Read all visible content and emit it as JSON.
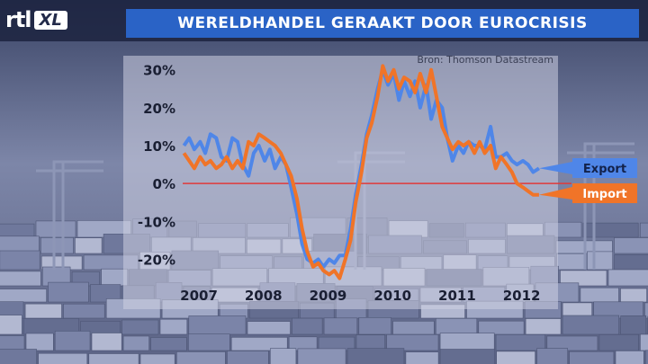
{
  "logo": {
    "text": "rtl",
    "badge": "XL"
  },
  "chart_data": {
    "type": "line",
    "title": "WERELDHANDEL GERAAKT DOOR EUROCRISIS",
    "subtitle": "Bron: Thomson Datastream",
    "x_ticks": [
      "2007",
      "2008",
      "2009",
      "2010",
      "2011",
      "2012"
    ],
    "y_ticks": [
      "30%",
      "20%",
      "10%",
      "0%",
      "-10%",
      "-20%"
    ],
    "ylim": [
      -27,
      33
    ],
    "xlim": [
      2006.9,
      2013.3
    ],
    "zero_line": true,
    "colors": {
      "Export": "#4f86e8",
      "Import": "#f07428",
      "zero": "#e03a3a"
    },
    "series": [
      {
        "name": "Export",
        "x": [
          2006.92,
          2007.0,
          2007.08,
          2007.17,
          2007.25,
          2007.33,
          2007.42,
          2007.5,
          2007.58,
          2007.67,
          2007.75,
          2007.83,
          2007.92,
          2008.0,
          2008.08,
          2008.17,
          2008.25,
          2008.33,
          2008.42,
          2008.5,
          2008.58,
          2008.67,
          2008.75,
          2008.83,
          2008.92,
          2009.0,
          2009.08,
          2009.17,
          2009.25,
          2009.33,
          2009.42,
          2009.5,
          2009.58,
          2009.67,
          2009.75,
          2009.83,
          2009.92,
          2010.0,
          2010.08,
          2010.17,
          2010.25,
          2010.33,
          2010.42,
          2010.5,
          2010.58,
          2010.67,
          2010.75,
          2010.83,
          2010.92,
          2011.0,
          2011.08,
          2011.17,
          2011.25,
          2011.33,
          2011.42,
          2011.5,
          2011.58,
          2011.67,
          2011.75,
          2011.83,
          2011.92,
          2012.0,
          2012.08,
          2012.17,
          2012.25,
          2012.33,
          2012.42
        ],
        "values": [
          10,
          12,
          9,
          11,
          8,
          13,
          12,
          7,
          6,
          12,
          11,
          5,
          2,
          8,
          10,
          6,
          9,
          4,
          7,
          5,
          -1,
          -8,
          -16,
          -20,
          -21,
          -20,
          -22,
          -20,
          -21,
          -19,
          -19,
          -12,
          -3,
          5,
          13,
          18,
          25,
          30,
          26,
          29,
          22,
          27,
          23,
          27,
          20,
          26,
          17,
          22,
          20,
          12,
          6,
          10,
          8,
          11,
          10,
          10,
          9,
          15,
          7,
          7,
          8,
          6,
          5,
          6,
          5,
          3,
          4
        ]
      },
      {
        "name": "Import",
        "x": [
          2006.92,
          2007.0,
          2007.08,
          2007.17,
          2007.25,
          2007.33,
          2007.42,
          2007.5,
          2007.58,
          2007.67,
          2007.75,
          2007.83,
          2007.92,
          2008.0,
          2008.08,
          2008.17,
          2008.25,
          2008.33,
          2008.42,
          2008.5,
          2008.58,
          2008.67,
          2008.75,
          2008.83,
          2008.92,
          2009.0,
          2009.08,
          2009.17,
          2009.25,
          2009.33,
          2009.42,
          2009.5,
          2009.58,
          2009.67,
          2009.75,
          2009.83,
          2009.92,
          2010.0,
          2010.08,
          2010.17,
          2010.25,
          2010.33,
          2010.42,
          2010.5,
          2010.58,
          2010.67,
          2010.75,
          2010.83,
          2010.92,
          2011.0,
          2011.08,
          2011.17,
          2011.25,
          2011.33,
          2011.42,
          2011.5,
          2011.58,
          2011.67,
          2011.75,
          2011.83,
          2011.92,
          2012.0,
          2012.08,
          2012.17,
          2012.25,
          2012.33,
          2012.42
        ],
        "values": [
          8,
          6,
          4,
          7,
          5,
          6,
          4,
          5,
          7,
          4,
          6,
          4,
          11,
          10,
          13,
          12,
          11,
          10,
          8,
          5,
          2,
          -4,
          -12,
          -18,
          -22,
          -21,
          -23,
          -24,
          -23,
          -25,
          -20,
          -15,
          -5,
          3,
          12,
          16,
          23,
          31,
          27,
          30,
          25,
          28,
          27,
          24,
          29,
          24,
          30,
          23,
          15,
          12,
          9,
          11,
          10,
          11,
          8,
          11,
          8,
          10,
          4,
          7,
          5,
          3,
          0,
          -1,
          -2,
          -3,
          -3
        ]
      }
    ]
  }
}
